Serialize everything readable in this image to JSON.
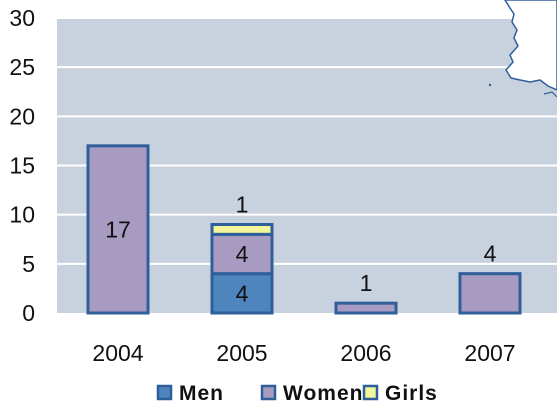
{
  "chart_data": {
    "type": "bar",
    "stacked": true,
    "categories": [
      "2004",
      "2005",
      "2006",
      "2007"
    ],
    "series": [
      {
        "name": "Men",
        "values": [
          0,
          4,
          0,
          0
        ],
        "color": "#4f85bd"
      },
      {
        "name": "Women",
        "values": [
          17,
          4,
          1,
          4
        ],
        "color": "#a89bc2"
      },
      {
        "name": "Girls",
        "values": [
          0,
          1,
          0,
          0
        ],
        "color": "#f3f59a"
      }
    ],
    "data_labels": [
      {
        "category": "2004",
        "series": "Women",
        "text": "17",
        "position": "inside"
      },
      {
        "category": "2005",
        "series": "Men",
        "text": "4",
        "position": "inside"
      },
      {
        "category": "2005",
        "series": "Women",
        "text": "4",
        "position": "inside"
      },
      {
        "category": "2005",
        "series": "Girls",
        "text": "1",
        "position": "above"
      },
      {
        "category": "2006",
        "series": "Women",
        "text": "1",
        "position": "above"
      },
      {
        "category": "2007",
        "series": "Women",
        "text": "4",
        "position": "above"
      }
    ],
    "y_ticks": [
      "0",
      "5",
      "10",
      "15",
      "20",
      "25",
      "30"
    ],
    "ylim": [
      0,
      30
    ],
    "title": "",
    "xlabel": "",
    "ylabel": "",
    "grid": true,
    "legend_position": "bottom",
    "plot_background": "#c8d2de",
    "bar_outline": "#2f5f9a",
    "grid_color": "#ffffff",
    "decoration": "coastline-map-outline"
  }
}
